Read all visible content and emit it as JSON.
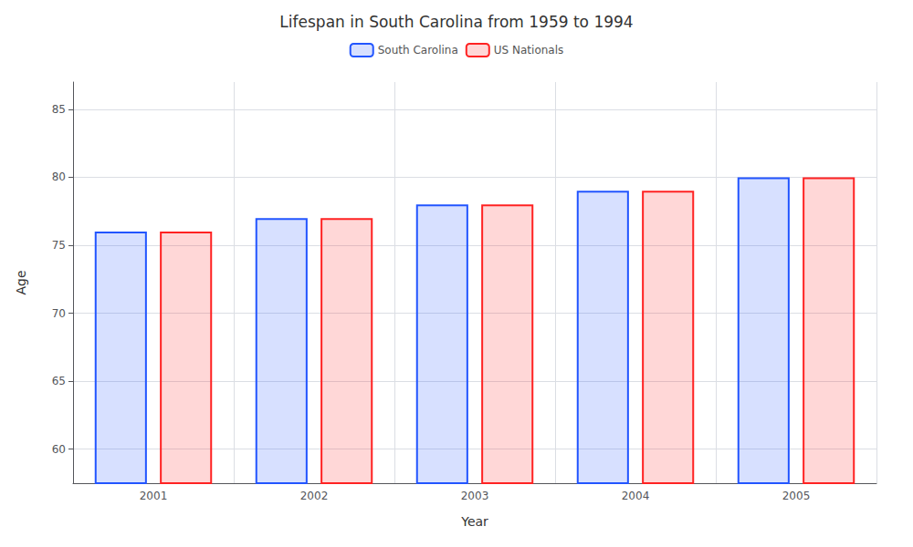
{
  "chart_data": {
    "type": "bar",
    "title": "Lifespan in South Carolina from 1959 to 1994",
    "xlabel": "Year",
    "ylabel": "Age",
    "categories": [
      "2001",
      "2002",
      "2003",
      "2004",
      "2005"
    ],
    "series": [
      {
        "name": "South Carolina",
        "color": "#2255ff",
        "values": [
          76,
          77,
          78,
          79,
          80
        ]
      },
      {
        "name": "US Nationals",
        "color": "#ff2222",
        "values": [
          76,
          77,
          78,
          79,
          80
        ]
      }
    ],
    "ylim": [
      57.5,
      87
    ],
    "yticks": [
      60,
      65,
      70,
      75,
      80,
      85
    ],
    "grid": true,
    "legend": "upper center"
  }
}
